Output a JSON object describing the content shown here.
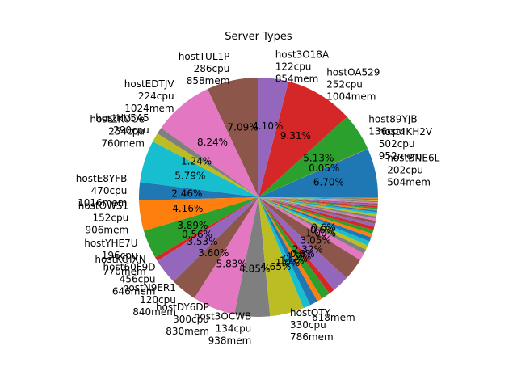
{
  "chart_data": {
    "type": "pie",
    "title": "Server Types",
    "start_angle_deg": 0,
    "counterclock": true,
    "colors": [
      "#1f77b4",
      "#ff7f0e",
      "#2ca02c",
      "#d62728",
      "#9467bd",
      "#8c564b",
      "#e377c2",
      "#7f7f7f",
      "#bcbd22",
      "#17becf"
    ],
    "slices": [
      {
        "name": "hostBNE6L",
        "cpu": "202cpu",
        "mem": "504mem",
        "pct": "6.70%",
        "value": 6.7
      },
      {
        "name": "host4KH2V",
        "cpu": "502cpu",
        "mem": "952mem",
        "pct": "0.05%",
        "value": 0.05
      },
      {
        "name": "host89YJB",
        "cpu": "136cpu",
        "mem": "",
        "pct": "5.13%",
        "value": 5.13
      },
      {
        "name": "hostOA529",
        "cpu": "252cpu",
        "mem": "1004mem",
        "pct": "9.31%",
        "value": 9.31
      },
      {
        "name": "host3O18A",
        "cpu": "122cpu",
        "mem": "854mem",
        "pct": "4.10%",
        "value": 4.1
      },
      {
        "name": "hostTUL1P",
        "cpu": "286cpu",
        "mem": "858mem",
        "pct": "7.09%",
        "value": 7.09
      },
      {
        "name": "hostEDTJV",
        "cpu": "224cpu",
        "mem": "1024mem",
        "pct": "8.24%",
        "value": 8.24
      },
      {
        "name": "hostHV5A5",
        "cpu": "290cpu",
        "mem": "",
        "pct": "",
        "value": 0.9
      },
      {
        "name": "hostZKOOe",
        "cpu": "254cpu",
        "mem": "760mem",
        "pct": "1.24%",
        "value": 1.24
      },
      {
        "name": "",
        "cpu": "",
        "mem": "",
        "pct": "5.79%",
        "value": 5.79
      },
      {
        "name": "hostE8YFB",
        "cpu": "470cpu",
        "mem": "1016mem",
        "pct": "2.46%",
        "value": 2.46
      },
      {
        "name": "hostOWS1",
        "cpu": "152cpu",
        "mem": "906mem",
        "pct": "4.16%",
        "value": 4.16
      },
      {
        "name": "hostYHE7U",
        "cpu": "196cpu",
        "mem": "",
        "pct": "3.89%",
        "value": 3.89
      },
      {
        "name": "hostKOIXN",
        "cpu": "",
        "mem": "770mem",
        "pct": "0.56%",
        "value": 0.56
      },
      {
        "name": "host60F9D",
        "cpu": "456cpu",
        "mem": "646mem",
        "pct": "3.53%",
        "value": 3.53
      },
      {
        "name": "hostN9ER1",
        "cpu": "120cpu",
        "mem": "840mem",
        "pct": "3.60%",
        "value": 3.6
      },
      {
        "name": "hostDY6DP",
        "cpu": "300cpu",
        "mem": "830mem",
        "pct": "5.83%",
        "value": 5.83
      },
      {
        "name": "host3OCWB",
        "cpu": "134cpu",
        "mem": "938mem",
        "pct": "4.85%",
        "value": 4.85
      },
      {
        "name": "hostOTY",
        "cpu": "330cpu",
        "mem": "786mem",
        "pct": "4.65%",
        "value": 4.65
      },
      {
        "name": "",
        "cpu": "",
        "mem": "618mem",
        "pct": "1.0%",
        "value": 1.0
      },
      {
        "name": "",
        "cpu": "",
        "mem": "",
        "pct": "1.1%",
        "value": 1.1
      },
      {
        "name": "",
        "cpu": "",
        "mem": "",
        "pct": "0.7%",
        "value": 0.7
      },
      {
        "name": "",
        "cpu": "",
        "mem": "",
        "pct": "1.2%",
        "value": 1.2
      },
      {
        "name": "",
        "cpu": "",
        "mem": "",
        "pct": "0.8%",
        "value": 0.8
      },
      {
        "name": "",
        "cpu": "",
        "mem": "",
        "pct": "2.32%",
        "value": 2.32
      },
      {
        "name": "",
        "cpu": "",
        "mem": "",
        "pct": "3.05%",
        "value": 3.05
      },
      {
        "name": "",
        "cpu": "",
        "mem": "",
        "pct": "1.00%",
        "value": 1.0
      },
      {
        "name": "",
        "cpu": "",
        "mem": "",
        "pct": "0.6%",
        "value": 0.6
      },
      {
        "name": "",
        "cpu": "",
        "mem": "",
        "pct": "0.6%",
        "value": 0.6
      },
      {
        "name": "",
        "cpu": "",
        "mem": "",
        "pct": "",
        "value": 0.6
      },
      {
        "name": "",
        "cpu": "",
        "mem": "",
        "pct": "",
        "value": 0.6
      },
      {
        "name": "",
        "cpu": "",
        "mem": "",
        "pct": "",
        "value": 0.5
      },
      {
        "name": "",
        "cpu": "",
        "mem": "",
        "pct": "",
        "value": 0.5
      },
      {
        "name": "",
        "cpu": "",
        "mem": "",
        "pct": "",
        "value": 0.5
      },
      {
        "name": "",
        "cpu": "",
        "mem": "",
        "pct": "",
        "value": 0.4
      },
      {
        "name": "",
        "cpu": "",
        "mem": "",
        "pct": "",
        "value": 0.4
      },
      {
        "name": "",
        "cpu": "",
        "mem": "",
        "pct": "",
        "value": 0.3
      },
      {
        "name": "",
        "cpu": "",
        "mem": "",
        "pct": "",
        "value": 0.3
      },
      {
        "name": "",
        "cpu": "",
        "mem": "",
        "pct": "",
        "value": 0.3
      },
      {
        "name": "",
        "cpu": "",
        "mem": "",
        "pct": "",
        "value": 0.3
      },
      {
        "name": "",
        "cpu": "",
        "mem": "",
        "pct": "",
        "value": 0.2
      },
      {
        "name": "",
        "cpu": "",
        "mem": "",
        "pct": "",
        "value": 0.2
      },
      {
        "name": "",
        "cpu": "",
        "mem": "",
        "pct": "",
        "value": 0.2
      },
      {
        "name": "",
        "cpu": "",
        "mem": "",
        "pct": "",
        "value": 0.2
      },
      {
        "name": "",
        "cpu": "",
        "mem": "",
        "pct": "",
        "value": 0.2
      },
      {
        "name": "",
        "cpu": "",
        "mem": "",
        "pct": "",
        "value": 0.15
      },
      {
        "name": "",
        "cpu": "",
        "mem": "",
        "pct": "",
        "value": 0.15
      },
      {
        "name": "",
        "cpu": "",
        "mem": "",
        "pct": "",
        "value": 0.15
      },
      {
        "name": "",
        "cpu": "",
        "mem": "",
        "pct": "",
        "value": 0.15
      },
      {
        "name": "",
        "cpu": "",
        "mem": "",
        "pct": "",
        "value": 0.1
      },
      {
        "name": "",
        "cpu": "",
        "mem": "",
        "pct": "",
        "value": 0.1
      },
      {
        "name": "",
        "cpu": "",
        "mem": "",
        "pct": "",
        "value": 0.1
      },
      {
        "name": "",
        "cpu": "",
        "mem": "",
        "pct": "",
        "value": 0.1
      }
    ]
  }
}
